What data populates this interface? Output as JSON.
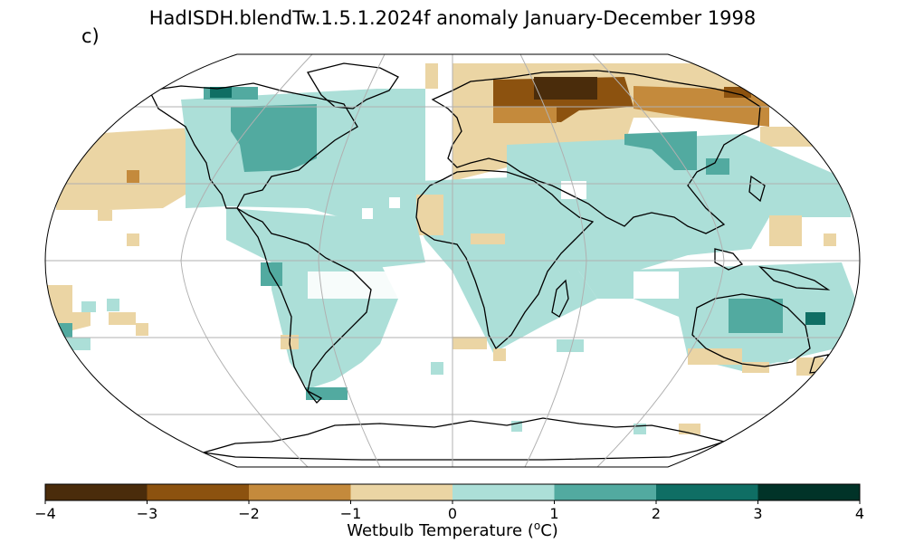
{
  "title": "HadISDH.blendTw.1.5.1.2024f anomaly January-December 1998",
  "panel_label": "c)",
  "colorbar": {
    "label_prefix": "Wetbulb Temperature (",
    "label_sup": "o",
    "label_suffix": "C)",
    "ticks": [
      "−4",
      "−3",
      "−2",
      "−1",
      "0",
      "1",
      "2",
      "3",
      "4"
    ],
    "colors": [
      "#4a2c0b",
      "#8c520f",
      "#c48a3c",
      "#ebd5a4",
      "#acdfd8",
      "#52aaa0",
      "#0f6e64",
      "#013328"
    ]
  },
  "map": {
    "projection": "Robinson",
    "grid": true,
    "variable": "Wetbulb temperature anomaly",
    "units": "°C",
    "period": "January-December 1998"
  }
}
